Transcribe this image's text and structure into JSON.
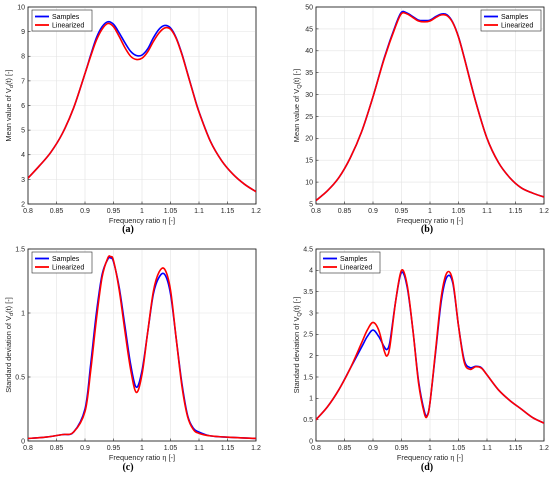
{
  "chart_data": [
    {
      "panel": "(a)",
      "type": "line",
      "xlabel": "Frequency ratio η [-]",
      "ylabel": "Mean value of V_d(t) [-]",
      "xlim": [
        0.8,
        1.2
      ],
      "ylim": [
        2,
        10
      ],
      "xticks": [
        "0.8",
        "0.85",
        "0.9",
        "0.95",
        "1",
        "1.05",
        "1.1",
        "1.15",
        "1.2"
      ],
      "yticks": [
        "2",
        "3",
        "4",
        "5",
        "6",
        "7",
        "8",
        "9",
        "10"
      ],
      "grid": true,
      "legend": "top-left",
      "x": [
        0.8,
        0.82,
        0.84,
        0.86,
        0.88,
        0.9,
        0.91,
        0.92,
        0.93,
        0.94,
        0.95,
        0.96,
        0.97,
        0.98,
        0.99,
        1.0,
        1.01,
        1.02,
        1.03,
        1.04,
        1.05,
        1.06,
        1.07,
        1.08,
        1.09,
        1.1,
        1.12,
        1.14,
        1.16,
        1.18,
        1.2
      ],
      "series": [
        {
          "name": "Samples",
          "color": "#0000ff",
          "values": [
            3.05,
            3.55,
            4.1,
            4.85,
            5.9,
            7.3,
            8.05,
            8.75,
            9.2,
            9.4,
            9.3,
            8.95,
            8.55,
            8.2,
            8.03,
            8.05,
            8.3,
            8.75,
            9.1,
            9.25,
            9.15,
            8.75,
            8.1,
            7.3,
            6.5,
            5.75,
            4.55,
            3.75,
            3.2,
            2.8,
            2.5
          ]
        },
        {
          "name": "Linearized",
          "color": "#ff0000",
          "values": [
            3.05,
            3.55,
            4.1,
            4.85,
            5.9,
            7.3,
            8.0,
            8.65,
            9.1,
            9.33,
            9.2,
            8.8,
            8.35,
            8.0,
            7.87,
            7.92,
            8.18,
            8.6,
            8.95,
            9.15,
            9.1,
            8.72,
            8.07,
            7.28,
            6.48,
            5.73,
            4.54,
            3.75,
            3.2,
            2.8,
            2.5
          ]
        }
      ]
    },
    {
      "panel": "(b)",
      "type": "line",
      "xlabel": "Frequency ratio η [-]",
      "ylabel": "Mean value of V_Q(t) [-]",
      "xlim": [
        0.8,
        1.2
      ],
      "ylim": [
        5,
        50
      ],
      "xticks": [
        "0.8",
        "0.85",
        "0.9",
        "0.95",
        "1",
        "1.05",
        "1.1",
        "1.15",
        "1.2"
      ],
      "yticks": [
        "5",
        "10",
        "15",
        "20",
        "25",
        "30",
        "35",
        "40",
        "45",
        "50"
      ],
      "grid": true,
      "legend": "top-right",
      "x": [
        0.8,
        0.82,
        0.84,
        0.86,
        0.88,
        0.9,
        0.92,
        0.94,
        0.95,
        0.96,
        0.97,
        0.98,
        0.99,
        1.0,
        1.01,
        1.02,
        1.03,
        1.04,
        1.05,
        1.06,
        1.08,
        1.1,
        1.12,
        1.14,
        1.16,
        1.18,
        1.2
      ],
      "series": [
        {
          "name": "Samples",
          "color": "#0000ff",
          "values": [
            5.8,
            8.0,
            11.0,
            15.5,
            21.5,
            29.5,
            38.5,
            46.0,
            48.8,
            48.6,
            47.8,
            47.0,
            46.9,
            47.0,
            47.8,
            48.4,
            48.2,
            46.5,
            43.2,
            38.5,
            28.5,
            20.0,
            14.5,
            11.0,
            8.7,
            7.5,
            6.6
          ]
        },
        {
          "name": "Linearized",
          "color": "#ff0000",
          "values": [
            5.8,
            8.0,
            11.0,
            15.5,
            21.5,
            29.5,
            38.3,
            45.7,
            48.5,
            48.4,
            47.6,
            46.8,
            46.6,
            46.8,
            47.6,
            48.2,
            48.0,
            46.4,
            43.1,
            38.4,
            28.4,
            20.0,
            14.5,
            11.0,
            8.7,
            7.5,
            6.6
          ]
        }
      ]
    },
    {
      "panel": "(c)",
      "type": "line",
      "xlabel": "Frequency ratio η [-]",
      "ylabel": "Standard deviation of V_d(t) [-]",
      "xlim": [
        0.8,
        1.2
      ],
      "ylim": [
        0,
        1.5
      ],
      "xticks": [
        "0.8",
        "0.85",
        "0.9",
        "0.95",
        "1",
        "1.05",
        "1.1",
        "1.15",
        "1.2"
      ],
      "yticks": [
        "0",
        "0.5",
        "1",
        "1.5"
      ],
      "grid": true,
      "legend": "top-left",
      "x": [
        0.8,
        0.83,
        0.86,
        0.88,
        0.9,
        0.91,
        0.92,
        0.93,
        0.94,
        0.945,
        0.95,
        0.96,
        0.97,
        0.98,
        0.99,
        1.0,
        1.01,
        1.02,
        1.03,
        1.04,
        1.05,
        1.06,
        1.07,
        1.08,
        1.09,
        1.1,
        1.12,
        1.15,
        1.2
      ],
      "series": [
        {
          "name": "Samples",
          "color": "#0000ff",
          "values": [
            0.02,
            0.03,
            0.05,
            0.07,
            0.25,
            0.6,
            1.0,
            1.3,
            1.42,
            1.43,
            1.4,
            1.2,
            0.9,
            0.6,
            0.42,
            0.55,
            0.85,
            1.15,
            1.28,
            1.3,
            1.15,
            0.8,
            0.45,
            0.2,
            0.1,
            0.07,
            0.04,
            0.03,
            0.02
          ]
        },
        {
          "name": "Linearized",
          "color": "#ff0000",
          "values": [
            0.02,
            0.03,
            0.05,
            0.07,
            0.23,
            0.55,
            0.95,
            1.28,
            1.43,
            1.44,
            1.41,
            1.18,
            0.86,
            0.56,
            0.38,
            0.52,
            0.85,
            1.17,
            1.32,
            1.34,
            1.18,
            0.8,
            0.43,
            0.19,
            0.09,
            0.06,
            0.04,
            0.03,
            0.02
          ]
        }
      ]
    },
    {
      "panel": "(d)",
      "type": "line",
      "xlabel": "Frequency ratio η [-]",
      "ylabel": "Standard deviation of V_Q(t) [-]",
      "xlim": [
        0.8,
        1.2
      ],
      "ylim": [
        0,
        4.5
      ],
      "xticks": [
        "0.8",
        "0.85",
        "0.9",
        "0.95",
        "1",
        "1.05",
        "1.1",
        "1.15",
        "1.2"
      ],
      "yticks": [
        "0",
        "0.5",
        "1",
        "1.5",
        "2",
        "2.5",
        "3",
        "3.5",
        "4",
        "4.5"
      ],
      "grid": true,
      "legend": "top-left",
      "x": [
        0.8,
        0.82,
        0.84,
        0.86,
        0.88,
        0.89,
        0.9,
        0.91,
        0.92,
        0.925,
        0.93,
        0.94,
        0.95,
        0.96,
        0.97,
        0.98,
        0.99,
        0.995,
        1.0,
        1.01,
        1.02,
        1.03,
        1.04,
        1.05,
        1.06,
        1.07,
        1.08,
        1.09,
        1.1,
        1.12,
        1.14,
        1.16,
        1.18,
        1.2
      ],
      "series": [
        {
          "name": "Samples",
          "color": "#0000ff",
          "values": [
            0.5,
            0.8,
            1.2,
            1.7,
            2.2,
            2.45,
            2.6,
            2.45,
            2.2,
            2.15,
            2.35,
            3.3,
            3.95,
            3.6,
            2.6,
            1.4,
            0.7,
            0.6,
            0.9,
            2.1,
            3.3,
            3.85,
            3.7,
            2.7,
            1.9,
            1.72,
            1.75,
            1.72,
            1.55,
            1.2,
            0.95,
            0.75,
            0.55,
            0.42
          ]
        },
        {
          "name": "Linearized",
          "color": "#ff0000",
          "values": [
            0.5,
            0.8,
            1.2,
            1.7,
            2.3,
            2.6,
            2.78,
            2.6,
            2.1,
            2.0,
            2.25,
            3.3,
            4.0,
            3.65,
            2.6,
            1.35,
            0.65,
            0.58,
            0.9,
            2.15,
            3.4,
            3.95,
            3.75,
            2.7,
            1.85,
            1.68,
            1.74,
            1.71,
            1.55,
            1.2,
            0.95,
            0.75,
            0.55,
            0.42
          ]
        }
      ]
    }
  ]
}
